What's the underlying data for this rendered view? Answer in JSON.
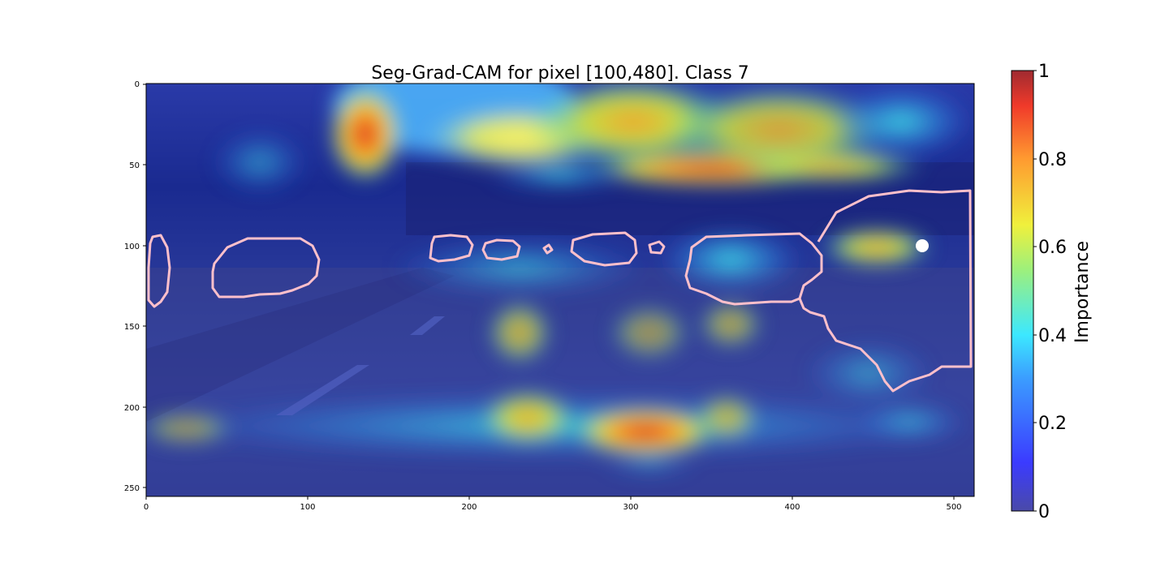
{
  "figure": {
    "title": "Seg-Grad-CAM for pixel [100,480]. Class 7"
  },
  "image_axes": {
    "x_ticks": [
      "0",
      "100",
      "200",
      "300",
      "400",
      "500"
    ],
    "y_ticks": [
      "0",
      "50",
      "100",
      "150",
      "200",
      "250"
    ],
    "x_tick_values": [
      0,
      100,
      200,
      300,
      400,
      500
    ],
    "y_tick_values": [
      0,
      50,
      100,
      150,
      200,
      250
    ],
    "x_range": [
      0,
      512
    ],
    "y_range": [
      0,
      256
    ],
    "marker_pixel": {
      "x": 480,
      "y": 100,
      "color": "#ffffff"
    },
    "contour_color": "#ffc0cb"
  },
  "colorbar": {
    "label": "Importance",
    "ticks": [
      "0",
      "0.2",
      "0.4",
      "0.6",
      "0.8",
      "1"
    ],
    "tick_values": [
      0,
      0.2,
      0.4,
      0.6,
      0.8,
      1
    ],
    "colormap": "jet"
  },
  "colors": {
    "colormap_stops": [
      "#00007f",
      "#0000ff",
      "#007fff",
      "#00ffff",
      "#7fff7f",
      "#ffff00",
      "#ff7f00",
      "#ff0000",
      "#7f0000"
    ]
  }
}
